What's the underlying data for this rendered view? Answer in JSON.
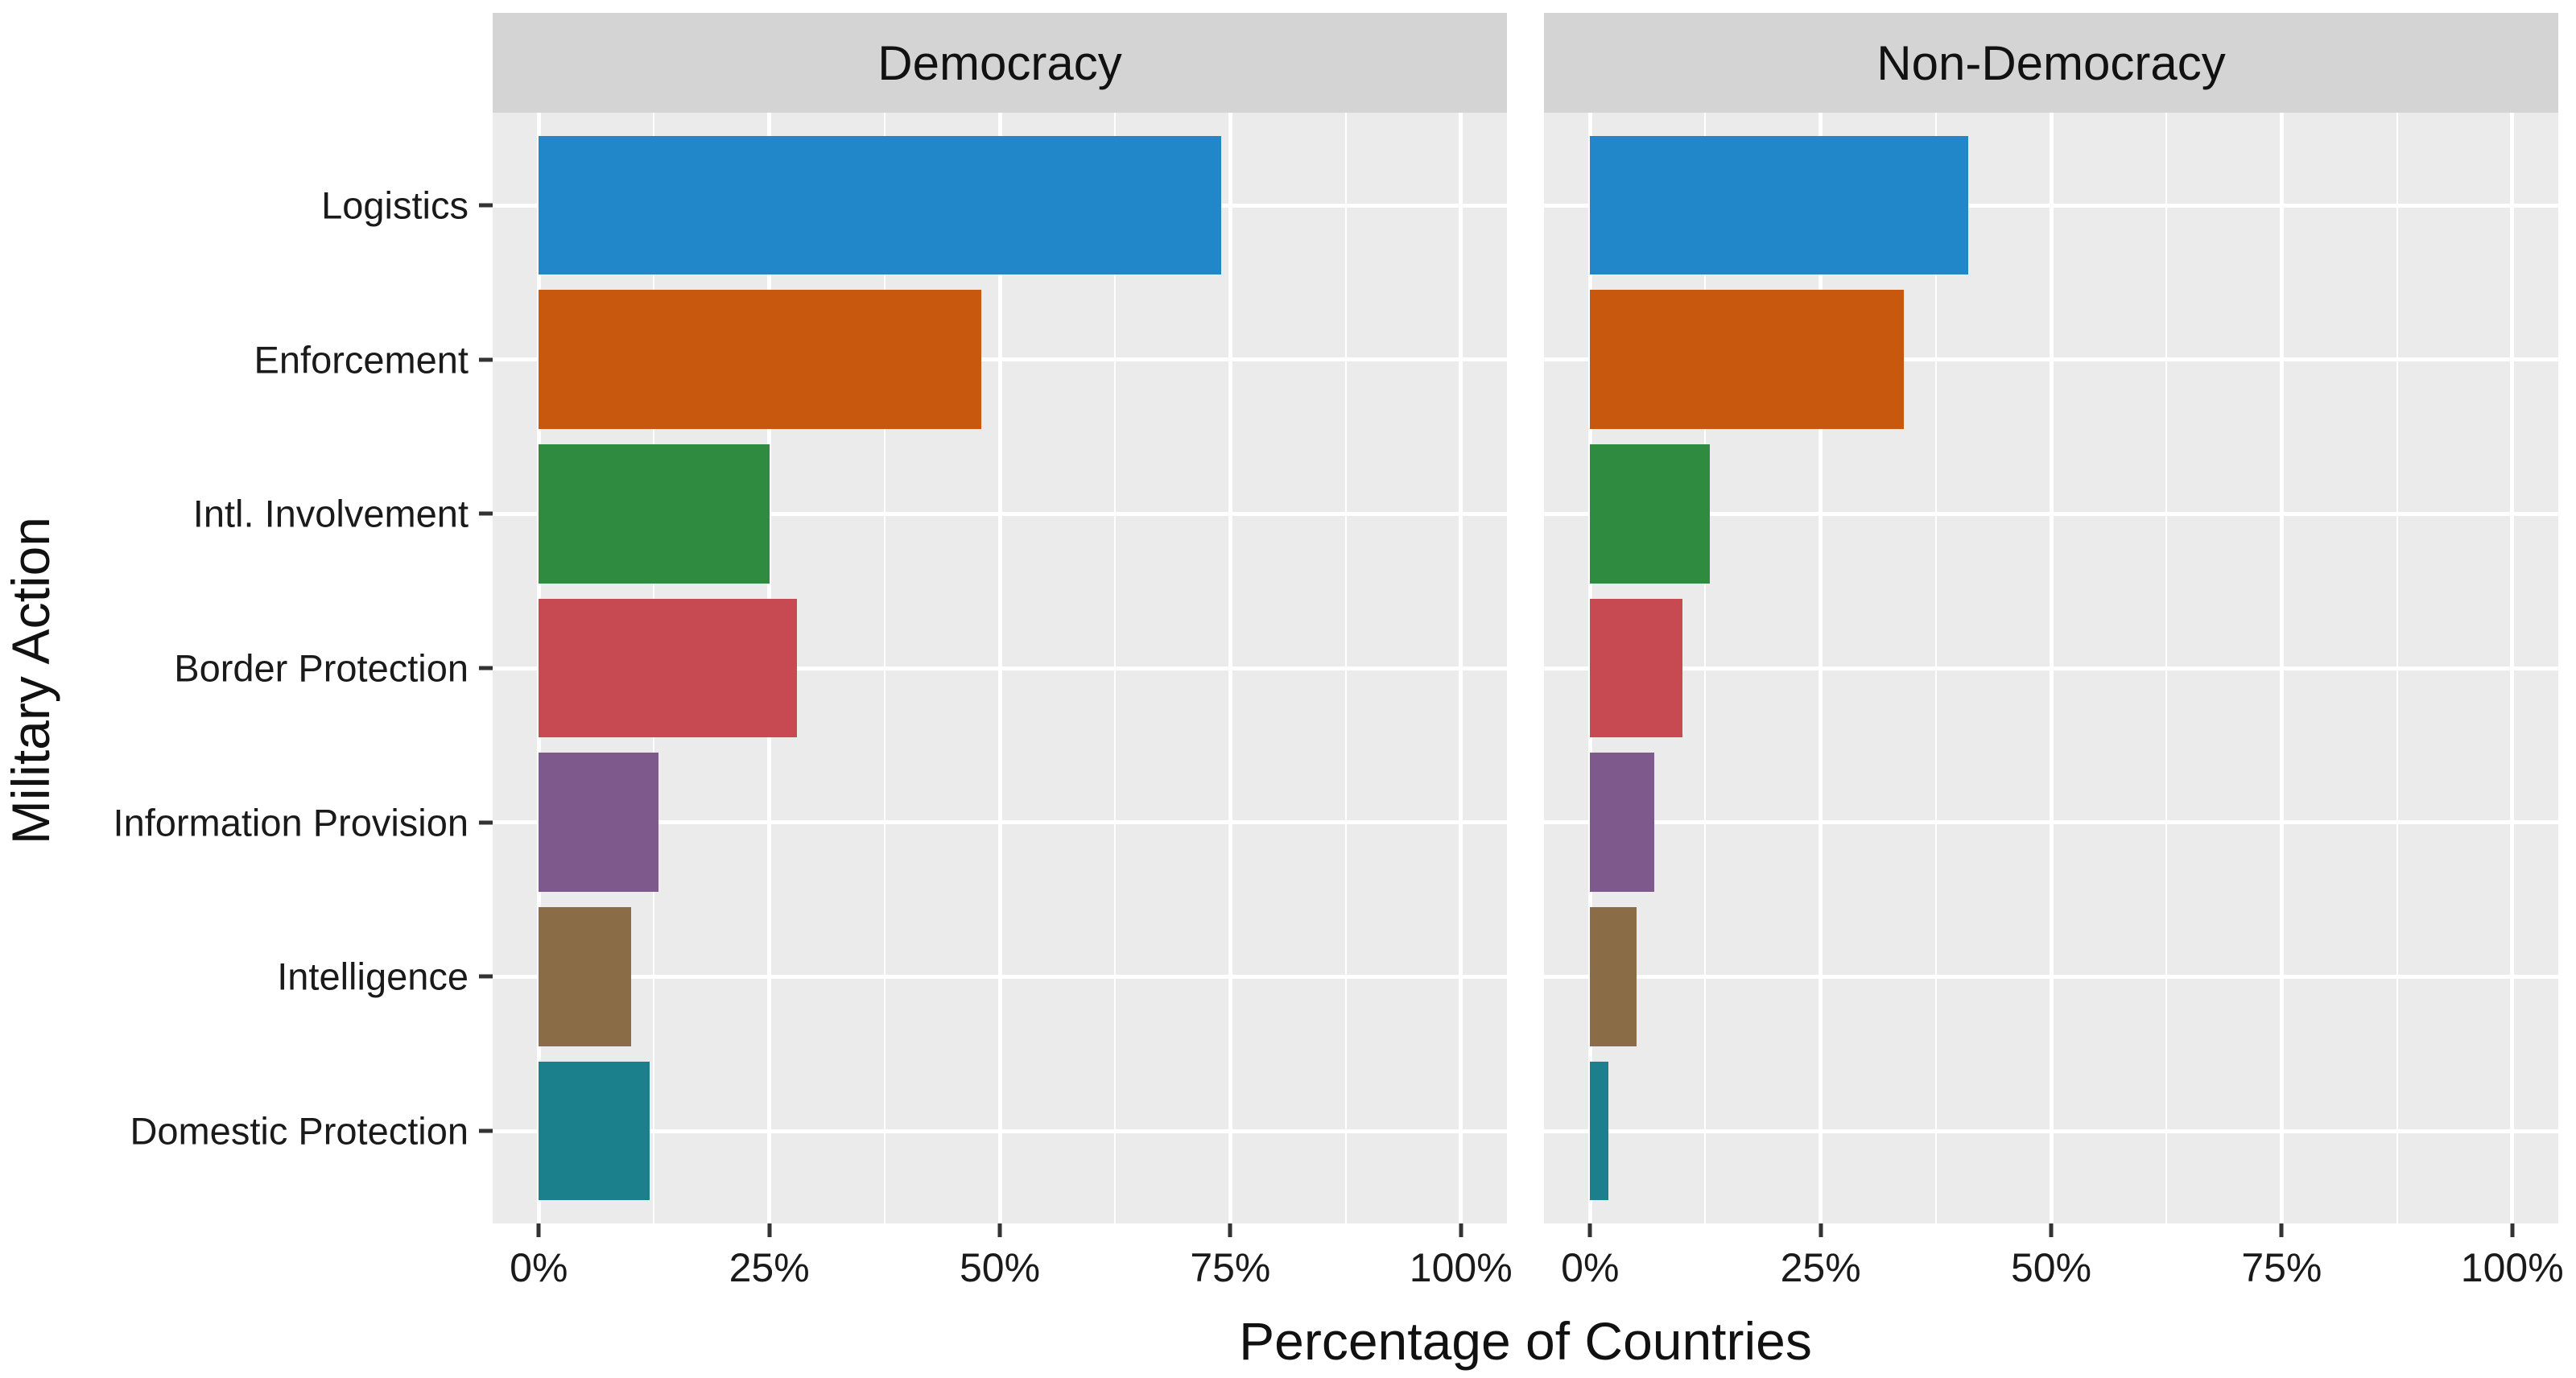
{
  "y_axis_title": "Military Action",
  "x_axis_title": "Percentage of Countries",
  "facets": [
    "Democracy",
    "Non-Democracy"
  ],
  "chart_data": {
    "type": "bar",
    "orientation": "horizontal",
    "title": "",
    "xlabel": "Percentage of Countries",
    "ylabel": "Military Action",
    "xlim": [
      0,
      100
    ],
    "x_tick_values": [
      0,
      25,
      50,
      75,
      100
    ],
    "x_tick_labels": [
      "0%",
      "25%",
      "50%",
      "75%",
      "100%"
    ],
    "x_minor_tick_values": [
      12.5,
      37.5,
      62.5,
      87.5
    ],
    "categories": [
      "Logistics",
      "Enforcement",
      "Intl. Involvement",
      "Border Protection",
      "Information Provision",
      "Intelligence",
      "Domestic Protection"
    ],
    "series": [
      {
        "name": "Democracy",
        "values": [
          74,
          48,
          25,
          28,
          13,
          10,
          12
        ]
      },
      {
        "name": "Non-Democracy",
        "values": [
          41,
          34,
          13,
          10,
          7,
          5,
          2
        ]
      }
    ],
    "bar_colors": [
      "#2287c9",
      "#c8580e",
      "#2e8b3f",
      "#c74a52",
      "#7e5a8c",
      "#8a6d47",
      "#1c7f8c"
    ],
    "panel_background": "#ebebeb",
    "strip_background": "#d4d4d4",
    "grid_color": "#ffffff",
    "legend": "none",
    "grid": "on"
  }
}
